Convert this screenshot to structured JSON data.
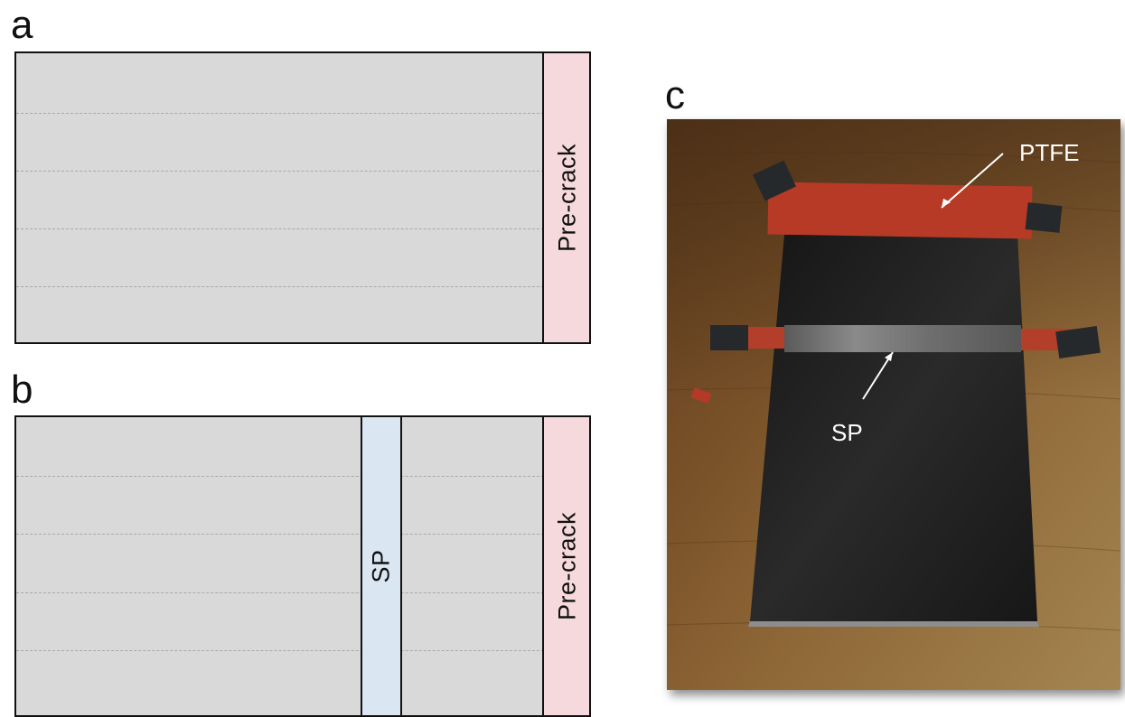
{
  "panels": {
    "a": {
      "letter": "a",
      "precrack_label": "Pre-crack"
    },
    "b": {
      "letter": "b",
      "precrack_label": "Pre-crack",
      "sp_label": "SP"
    },
    "c": {
      "letter": "c",
      "ptfe_label": "PTFE",
      "sp_label": "SP"
    }
  },
  "colors": {
    "laminate_fill": "#d9d9d9",
    "precrack_fill": "#f6d9dc",
    "sp_fill": "#dbe6f3",
    "outline": "#111111",
    "ptfe_tape": "#b03a28",
    "carbon_panel": "#1c1c1c"
  }
}
